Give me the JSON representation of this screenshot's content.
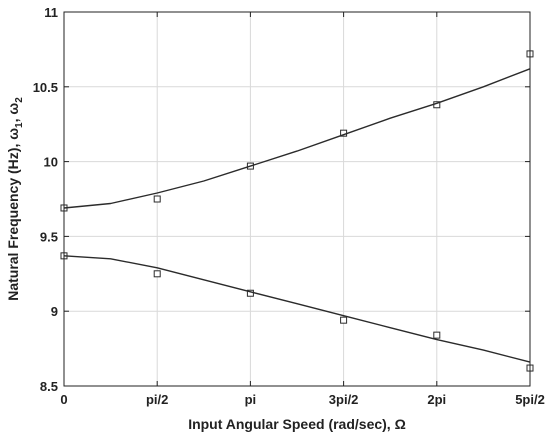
{
  "chart_data": {
    "type": "line",
    "title": "",
    "xlabel": "Input Angular Speed (rad/sec), Ω",
    "ylabel": "Natural Frequency (Hz), ω",
    "ylabel_parts": {
      "prefix": "Natural Frequency (Hz), ω",
      "sub1": "1",
      "mid": ", ω",
      "sub2": "2"
    },
    "x_tick_labels": [
      "0",
      "pi/2",
      "pi",
      "3pi/2",
      "2pi",
      "5pi/2"
    ],
    "x_tick_values": [
      0,
      1.5708,
      3.1416,
      4.7124,
      6.2832,
      7.854
    ],
    "y_tick_labels": [
      "8.5",
      "9",
      "9.5",
      "10",
      "10.5",
      "11"
    ],
    "y_tick_values": [
      8.5,
      9,
      9.5,
      10,
      10.5,
      11
    ],
    "xlim": [
      0,
      7.854
    ],
    "ylim": [
      8.5,
      11
    ],
    "grid": true,
    "legend": false,
    "series": [
      {
        "kind": "markers",
        "marker": "square",
        "x": [
          0,
          1.5708,
          3.1416,
          4.7124,
          6.2832,
          7.854
        ],
        "y": [
          9.69,
          9.75,
          9.97,
          10.19,
          10.38,
          10.72
        ]
      },
      {
        "kind": "markers",
        "marker": "square",
        "x": [
          0,
          1.5708,
          3.1416,
          4.7124,
          6.2832,
          7.854
        ],
        "y": [
          9.37,
          9.25,
          9.12,
          8.94,
          8.84,
          8.62
        ]
      },
      {
        "kind": "line",
        "x": [
          0,
          0.7854,
          1.5708,
          2.3562,
          3.1416,
          3.927,
          4.7124,
          5.4978,
          6.2832,
          7.0686,
          7.854
        ],
        "y": [
          9.69,
          9.72,
          9.79,
          9.87,
          9.97,
          10.07,
          10.18,
          10.29,
          10.39,
          10.5,
          10.62
        ]
      },
      {
        "kind": "line",
        "x": [
          0,
          0.7854,
          1.5708,
          2.3562,
          3.1416,
          3.927,
          4.7124,
          5.4978,
          6.2832,
          7.0686,
          7.854
        ],
        "y": [
          9.37,
          9.35,
          9.29,
          9.21,
          9.13,
          9.05,
          8.97,
          8.89,
          8.81,
          8.74,
          8.66
        ]
      }
    ],
    "colors": {
      "line": "#2b2b2b",
      "marker": "#2b2b2b",
      "grid": "#d9d9d9",
      "axis": "#222222",
      "text": "#222222"
    }
  }
}
